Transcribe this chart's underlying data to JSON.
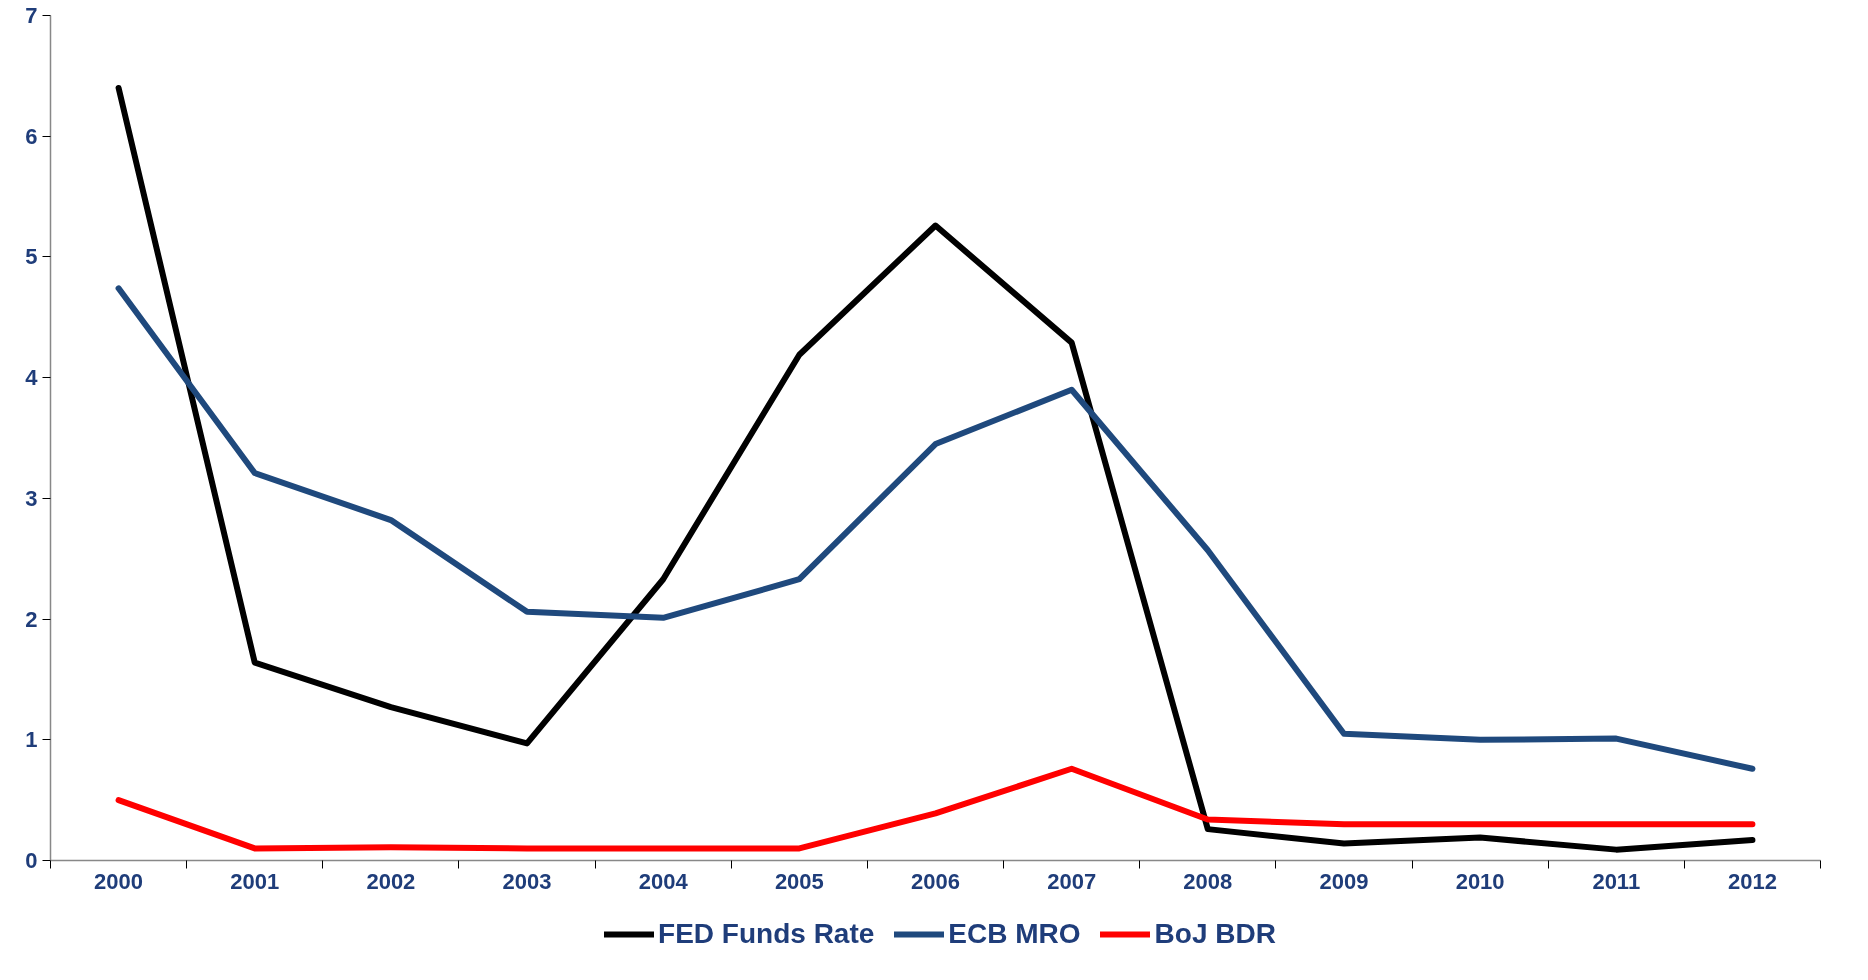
{
  "chart_data": {
    "type": "line",
    "categories": [
      "2000",
      "2001",
      "2002",
      "2003",
      "2004",
      "2005",
      "2006",
      "2007",
      "2008",
      "2009",
      "2010",
      "2011",
      "2012"
    ],
    "series": [
      {
        "name": "FED Funds Rate",
        "color": "#000000",
        "values": [
          6.4,
          1.64,
          1.27,
          0.97,
          2.33,
          4.19,
          5.26,
          4.29,
          0.26,
          0.14,
          0.19,
          0.09,
          0.17
        ]
      },
      {
        "name": "ECB MRO",
        "color": "#1f497d",
        "values": [
          4.74,
          3.21,
          2.82,
          2.06,
          2.01,
          2.33,
          3.45,
          3.9,
          2.57,
          1.05,
          1.0,
          1.01,
          0.76
        ]
      },
      {
        "name": "BoJ BDR",
        "color": "#ff0000",
        "values": [
          0.5,
          0.1,
          0.11,
          0.1,
          0.1,
          0.1,
          0.39,
          0.76,
          0.34,
          0.3,
          0.3,
          0.3,
          0.3
        ]
      }
    ],
    "ylim": [
      0,
      7
    ],
    "yticks": [
      0,
      1,
      2,
      3,
      4,
      5,
      6,
      7
    ],
    "grid": false,
    "legend": "bottom",
    "marker": "none",
    "line_style": "solid"
  }
}
